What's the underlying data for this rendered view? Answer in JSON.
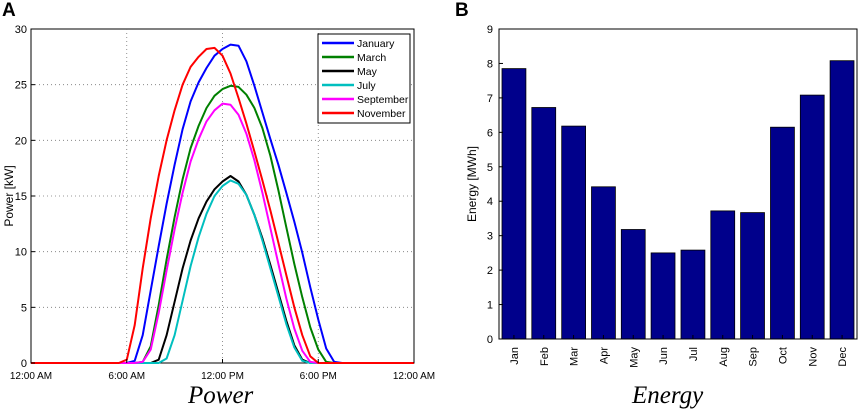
{
  "panels": {
    "a_label": "A",
    "b_label": "B",
    "a_caption": "Power",
    "b_caption": "Energy"
  },
  "chart_data": [
    {
      "type": "line",
      "title": "",
      "xlabel": "",
      "ylabel": "Power [kW]",
      "xlim": [
        0,
        24
      ],
      "ylim": [
        0,
        30
      ],
      "grid": true,
      "legend_position": "top-right",
      "x_ticks": [
        {
          "value": 0,
          "label": "12:00 AM"
        },
        {
          "value": 6,
          "label": "6:00 AM"
        },
        {
          "value": 12,
          "label": "12:00 PM"
        },
        {
          "value": 18,
          "label": "6:00 PM"
        },
        {
          "value": 24,
          "label": "12:00 AM"
        }
      ],
      "y_ticks": [
        0,
        5,
        10,
        15,
        20,
        25,
        30
      ],
      "series": [
        {
          "name": "January",
          "color": "#0000ff",
          "x": [
            0,
            6,
            6.5,
            7,
            7.5,
            8,
            8.5,
            9,
            9.5,
            10,
            10.5,
            11,
            11.5,
            12,
            12.5,
            13,
            13.5,
            14,
            14.5,
            15,
            15.5,
            16,
            16.5,
            17,
            17.5,
            18,
            18.5,
            19,
            19.5,
            20,
            24
          ],
          "y": [
            0,
            0,
            0.2,
            2.5,
            6.5,
            10.5,
            14.3,
            17.8,
            21,
            23.5,
            25.2,
            26.5,
            27.6,
            28.2,
            28.6,
            28.5,
            27.1,
            24.9,
            22.5,
            20.1,
            17.8,
            15.3,
            12.7,
            9.9,
            6.8,
            3.9,
            1.3,
            0.1,
            0,
            0,
            0
          ]
        },
        {
          "name": "March",
          "color": "#008000",
          "x": [
            0,
            6.5,
            7,
            7.5,
            8,
            8.5,
            9,
            9.5,
            10,
            10.5,
            11,
            11.5,
            12,
            12.5,
            13,
            13.5,
            14,
            14.5,
            15,
            15.5,
            16,
            16.5,
            17,
            17.5,
            18,
            18.5,
            19,
            24
          ],
          "y": [
            0,
            0,
            0.1,
            1.5,
            5.2,
            9.3,
            13.1,
            16.5,
            19.3,
            21.3,
            22.9,
            24,
            24.6,
            24.9,
            24.8,
            24.1,
            22.9,
            21.1,
            18.6,
            15.5,
            12.2,
            8.9,
            5.9,
            3.2,
            1.2,
            0.1,
            0,
            0
          ]
        },
        {
          "name": "May",
          "color": "#000000",
          "x": [
            0,
            7.5,
            8,
            8.5,
            9,
            9.5,
            10,
            10.5,
            11,
            11.5,
            12,
            12.5,
            13,
            13.5,
            14,
            14.5,
            15,
            15.5,
            16,
            16.5,
            17,
            17.5,
            18,
            18.5,
            19,
            24
          ],
          "y": [
            0,
            0,
            0.3,
            2.5,
            5.5,
            8.5,
            11,
            13,
            14.5,
            15.6,
            16.3,
            16.8,
            16.3,
            15.1,
            13.3,
            11.2,
            8.8,
            6.3,
            3.8,
            1.6,
            0.3,
            0,
            0,
            0,
            0,
            0
          ]
        },
        {
          "name": "July",
          "color": "#00bfbf",
          "x": [
            0,
            8,
            8.5,
            9,
            9.5,
            10,
            10.5,
            11,
            11.5,
            12,
            12.5,
            13,
            13.5,
            14,
            14.5,
            15,
            15.5,
            16,
            16.5,
            17,
            17.5,
            18,
            24
          ],
          "y": [
            0,
            0,
            0.4,
            2.5,
            5.6,
            8.7,
            11.3,
            13.4,
            15,
            15.9,
            16.4,
            16.1,
            15.1,
            13.3,
            11,
            8.5,
            6,
            3.5,
            1.4,
            0.2,
            0,
            0,
            0
          ]
        },
        {
          "name": "September",
          "color": "#ff00ff",
          "x": [
            0,
            6.5,
            7,
            7.5,
            8,
            8.5,
            9,
            9.5,
            10,
            10.5,
            11,
            11.5,
            12,
            12.5,
            13,
            13.5,
            14,
            14.5,
            15,
            15.5,
            16,
            16.5,
            17,
            17.5,
            18,
            18.5,
            19,
            24
          ],
          "y": [
            0,
            0,
            0.1,
            1.2,
            4.5,
            8.3,
            12,
            15.3,
            18.1,
            20.1,
            21.7,
            22.7,
            23.3,
            23.2,
            22.3,
            20.6,
            18.2,
            15.3,
            12.1,
            8.9,
            5.8,
            3.1,
            1.1,
            0.1,
            0,
            0,
            0,
            0
          ]
        },
        {
          "name": "November",
          "color": "#ff0000",
          "x": [
            0,
            5.5,
            6,
            6.5,
            7,
            7.5,
            8,
            8.5,
            9,
            9.5,
            10,
            10.5,
            11,
            11.5,
            12,
            12.5,
            13,
            13.5,
            14,
            14.5,
            15,
            15.5,
            16,
            16.5,
            17,
            17.5,
            18,
            18.5,
            19,
            24
          ],
          "y": [
            0,
            0,
            0.3,
            3.4,
            8.5,
            13,
            16.8,
            20,
            22.7,
            25,
            26.6,
            27.5,
            28.2,
            28.3,
            27.6,
            26,
            23.8,
            21.5,
            19,
            16.4,
            13.7,
            10.8,
            7.9,
            5,
            2.5,
            0.6,
            0,
            0,
            0,
            0
          ]
        }
      ]
    },
    {
      "type": "bar",
      "title": "",
      "xlabel": "",
      "ylabel": "Energy [MWh]",
      "ylim": [
        0,
        9
      ],
      "y_ticks": [
        0,
        1,
        2,
        3,
        4,
        5,
        6,
        7,
        8,
        9
      ],
      "bar_color": "#00008b",
      "categories": [
        "Jan",
        "Feb",
        "Mar",
        "Apr",
        "May",
        "Jun",
        "Jul",
        "Aug",
        "Sep",
        "Oct",
        "Nov",
        "Dec"
      ],
      "values": [
        7.85,
        6.72,
        6.18,
        4.42,
        3.18,
        2.5,
        2.58,
        3.72,
        3.67,
        6.15,
        7.08,
        8.08
      ]
    }
  ]
}
